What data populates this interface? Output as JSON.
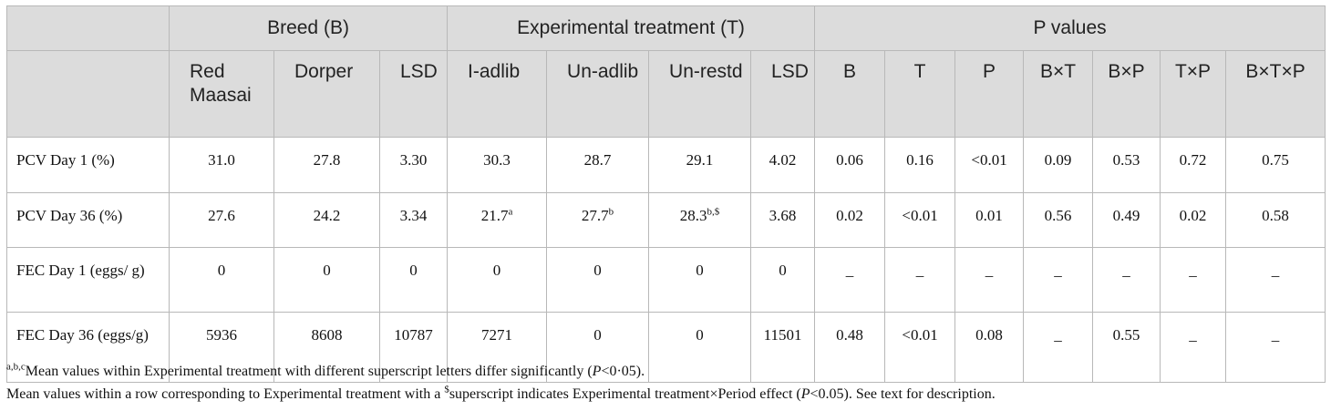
{
  "header": {
    "groups": {
      "breed": "Breed (B)",
      "treatment": "Experimental treatment (T)",
      "pvalues": "P values"
    },
    "columns": [
      "Red Maasai",
      "Dorper",
      "LSD",
      "I-adlib",
      "Un-adlib",
      "Un-restd",
      "LSD",
      "B",
      "T",
      "P",
      "B×T",
      "B×P",
      "T×P",
      "B×T×P"
    ]
  },
  "rows": [
    {
      "label": "PCV Day 1 (%)",
      "cells": [
        {
          "v": "31.0"
        },
        {
          "v": "27.8"
        },
        {
          "v": "3.30"
        },
        {
          "v": "30.3"
        },
        {
          "v": "28.7"
        },
        {
          "v": "29.1"
        },
        {
          "v": "4.02"
        },
        {
          "v": "0.06"
        },
        {
          "v": "0.16"
        },
        {
          "v": "<0.01"
        },
        {
          "v": "0.09"
        },
        {
          "v": "0.53"
        },
        {
          "v": "0.72"
        },
        {
          "v": "0.75"
        }
      ]
    },
    {
      "label": "PCV Day 36 (%)",
      "cells": [
        {
          "v": "27.6"
        },
        {
          "v": "24.2"
        },
        {
          "v": "3.34"
        },
        {
          "v": "21.7",
          "sup": "a"
        },
        {
          "v": "27.7",
          "sup": "b"
        },
        {
          "v": "28.3",
          "sup": "b,$"
        },
        {
          "v": "3.68"
        },
        {
          "v": "0.02"
        },
        {
          "v": "<0.01"
        },
        {
          "v": "0.01"
        },
        {
          "v": "0.56"
        },
        {
          "v": "0.49"
        },
        {
          "v": "0.02"
        },
        {
          "v": "0.58"
        }
      ]
    },
    {
      "label": "FEC Day 1 (eggs/ g)",
      "cells": [
        {
          "v": "0"
        },
        {
          "v": "0"
        },
        {
          "v": "0"
        },
        {
          "v": "0"
        },
        {
          "v": "0"
        },
        {
          "v": "0"
        },
        {
          "v": "0"
        },
        {
          "v": "_"
        },
        {
          "v": "_"
        },
        {
          "v": "_"
        },
        {
          "v": "_"
        },
        {
          "v": "_"
        },
        {
          "v": "_"
        },
        {
          "v": "_"
        }
      ]
    },
    {
      "label": "FEC Day 36 (eggs/g)",
      "cells": [
        {
          "v": "5936"
        },
        {
          "v": "8608"
        },
        {
          "v": "10787"
        },
        {
          "v": "7271"
        },
        {
          "v": "0"
        },
        {
          "v": "0"
        },
        {
          "v": "11501"
        },
        {
          "v": "0.48"
        },
        {
          "v": "<0.01"
        },
        {
          "v": "0.08"
        },
        {
          "v": "_"
        },
        {
          "v": "0.55"
        },
        {
          "v": "_"
        },
        {
          "v": "_"
        }
      ]
    }
  ],
  "footnotes": {
    "fn1_sup": "a,b,c",
    "fn1_text": "Mean values within Experimental treatment with different superscript letters differ significantly (",
    "fn1_p": "P",
    "fn1_tail": "<0·05).",
    "fn2_text": "Mean values within a row corresponding to Experimental treatment with a ",
    "fn2_sup": "$",
    "fn2_mid": "superscript indicates Experimental treatment×Period effect (",
    "fn2_p": "P",
    "fn2_tail": "<0.05). See text for description."
  }
}
